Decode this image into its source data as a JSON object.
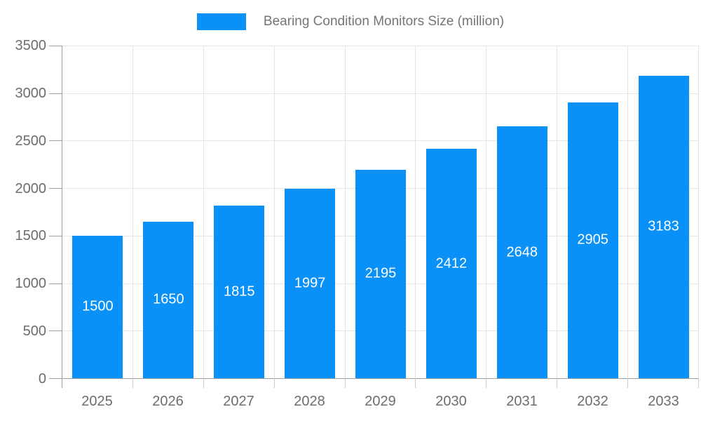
{
  "legend": {
    "label": "Bearing Condition Monitors Size (million)"
  },
  "chart_data": {
    "type": "bar",
    "title": "Bearing Condition Monitors Size (million)",
    "categories": [
      "2025",
      "2026",
      "2027",
      "2028",
      "2029",
      "2030",
      "2031",
      "2032",
      "2033"
    ],
    "values": [
      1500,
      1650,
      1815,
      1997,
      2195,
      2412,
      2648,
      2905,
      3183
    ],
    "series_name": "Bearing Condition Monitors Size (million)",
    "xlabel": "",
    "ylabel": "",
    "ylim": [
      0,
      3500
    ],
    "yticks": [
      0,
      500,
      1000,
      1500,
      2000,
      2500,
      3000,
      3500
    ],
    "grid": true,
    "legend_position": "top",
    "bar_labels_inside": true
  },
  "colors": {
    "bar": "#0a91f7",
    "bar_label_text": "#ffffff",
    "grid": "#e5e5e5",
    "axis": "#9e9e9e",
    "tick": "#cccccc",
    "tick_text": "#6d6d6d",
    "legend_text": "#757575",
    "background": "#ffffff"
  }
}
